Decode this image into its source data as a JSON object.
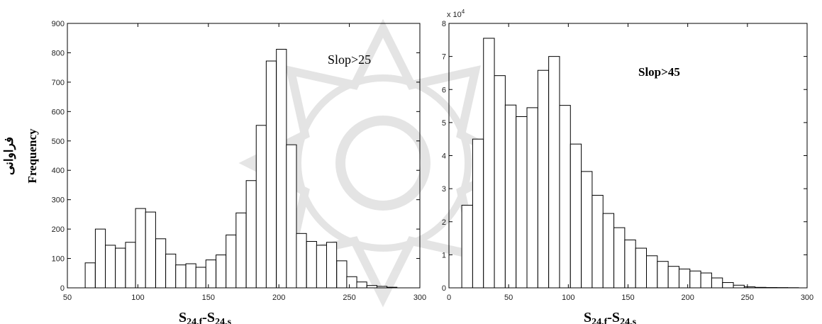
{
  "chart_data": [
    {
      "type": "bar",
      "title": "Slop>25",
      "xlabel_main": "S",
      "xlabel_sub1": "24,f",
      "xlabel_mid": "-S",
      "xlabel_sub2": "24,s",
      "ylabel_fa": "فراوانی",
      "ylabel_en": "Frequency",
      "xlim": [
        50,
        300
      ],
      "ylim": [
        0,
        900
      ],
      "xticks": [
        50,
        100,
        150,
        200,
        250,
        300
      ],
      "xtick_labels": [
        "50",
        "100",
        "150",
        "200",
        "250",
        "300"
      ],
      "yticks": [
        0,
        100,
        200,
        300,
        400,
        500,
        600,
        700,
        800,
        900
      ],
      "ytick_labels": [
        "0",
        "100",
        "200",
        "300",
        "400",
        "500",
        "600",
        "700",
        "800",
        "900"
      ],
      "bin_width": 7.14,
      "x": [
        66.2,
        73.4,
        80.5,
        87.6,
        94.8,
        101.9,
        109.0,
        116.2,
        123.3,
        130.4,
        137.6,
        144.7,
        151.8,
        159.0,
        166.1,
        173.2,
        180.4,
        187.5,
        194.6,
        201.8,
        208.9,
        216.0,
        223.2,
        230.3,
        237.4,
        244.6,
        251.7,
        258.8,
        266.0,
        273.1,
        280.2
      ],
      "values": [
        85,
        200,
        145,
        135,
        155,
        270,
        258,
        167,
        115,
        78,
        82,
        70,
        95,
        112,
        180,
        255,
        365,
        553,
        772,
        812,
        487,
        185,
        158,
        145,
        155,
        92,
        38,
        20,
        8,
        5,
        2
      ]
    },
    {
      "type": "bar",
      "title": "Slop>45",
      "xlabel_main": "S",
      "xlabel_sub1": "24,f",
      "xlabel_mid": "-S",
      "xlabel_sub2": "24,s",
      "ylabel_fa": "",
      "ylabel_en": "",
      "multiplier_base": "x 10",
      "multiplier_exp": "4",
      "xlim": [
        0,
        300
      ],
      "ylim": [
        0,
        8
      ],
      "xticks": [
        0,
        50,
        100,
        150,
        200,
        250,
        300
      ],
      "xtick_labels": [
        "0",
        "50",
        "100",
        "150",
        "200",
        "250",
        "300"
      ],
      "yticks": [
        0,
        1,
        2,
        3,
        4,
        5,
        6,
        7,
        8
      ],
      "ytick_labels": [
        "0",
        "1",
        "2",
        "3",
        "4",
        "5",
        "6",
        "7",
        "8"
      ],
      "bin_width": 9.1,
      "x": [
        15.3,
        24.4,
        33.5,
        42.6,
        51.7,
        60.8,
        69.9,
        79.0,
        88.1,
        97.2,
        106.3,
        115.4,
        124.5,
        133.6,
        142.7,
        151.8,
        160.9,
        170.0,
        179.1,
        188.2,
        197.3,
        206.4,
        215.5,
        224.6,
        233.7,
        242.8,
        251.9,
        261.0,
        270.1,
        279.2,
        288.3
      ],
      "values": [
        2.5,
        4.5,
        7.55,
        6.42,
        5.53,
        5.18,
        5.45,
        6.58,
        7.0,
        5.52,
        4.35,
        3.52,
        2.8,
        2.25,
        1.82,
        1.45,
        1.2,
        0.97,
        0.8,
        0.65,
        0.57,
        0.51,
        0.45,
        0.3,
        0.16,
        0.08,
        0.03,
        0.015,
        0.01,
        0.008,
        0.005
      ]
    }
  ]
}
